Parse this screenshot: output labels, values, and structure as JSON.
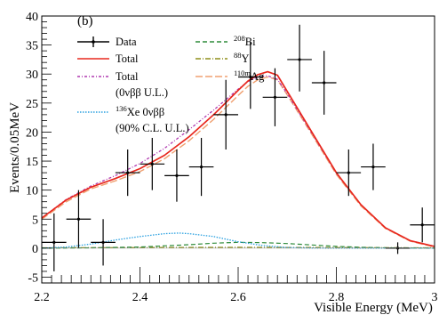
{
  "chart_data": {
    "type": "scatter",
    "panel_label": "(b)",
    "xlabel": "Visible Energy (MeV)",
    "ylabel": "Events/0.05MeV",
    "xlim": [
      2.2,
      3.0
    ],
    "ylim": [
      -6,
      40
    ],
    "x_ticks": [
      2.2,
      2.4,
      2.6,
      2.8,
      3.0
    ],
    "x_tick_labels": [
      "2.2",
      "2.4",
      "2.6",
      "2.8",
      "3"
    ],
    "y_ticks": [
      -5,
      0,
      5,
      10,
      15,
      20,
      25,
      30,
      35,
      40
    ],
    "y_tick_labels": [
      "-5",
      "0",
      "5",
      "10",
      "15",
      "20",
      "25",
      "30",
      "35",
      "40"
    ],
    "grid": false,
    "legend_placement": "top-left",
    "legend": {
      "data": "Data",
      "total": "Total",
      "total_ul_line1": "Total",
      "total_ul_line2": "(0νββ U.L.)",
      "xe_line1": "136",
      "xe_line1_rest": "Xe 0νββ",
      "xe_line2": "(90% C.L. U.L.)",
      "bi_sup": "208",
      "bi_rest": "Bi",
      "y_sup": "88",
      "y_rest": "Y",
      "ag_sup": "110m",
      "ag_rest": "Ag"
    },
    "colors": {
      "data": "#000000",
      "total": "#e8281e",
      "total_ul": "#b03ab0",
      "xe": "#2aa0e0",
      "bi": "#2e8b3a",
      "y": "#8f8f1a",
      "ag": "#f0a070"
    },
    "data_points": [
      {
        "x": 2.225,
        "y": 1,
        "ylo": -4,
        "yhi": 6
      },
      {
        "x": 2.275,
        "y": 5,
        "ylo": 0,
        "yhi": 10
      },
      {
        "x": 2.325,
        "y": 1,
        "ylo": -3,
        "yhi": 5
      },
      {
        "x": 2.375,
        "y": 13,
        "ylo": 9,
        "yhi": 17
      },
      {
        "x": 2.425,
        "y": 14.5,
        "ylo": 10,
        "yhi": 19
      },
      {
        "x": 2.475,
        "y": 12.5,
        "ylo": 8,
        "yhi": 17
      },
      {
        "x": 2.525,
        "y": 14,
        "ylo": 9,
        "yhi": 19
      },
      {
        "x": 2.575,
        "y": 23,
        "ylo": 17,
        "yhi": 29
      },
      {
        "x": 2.625,
        "y": 29.5,
        "ylo": 24,
        "yhi": 35.5
      },
      {
        "x": 2.675,
        "y": 26,
        "ylo": 21,
        "yhi": 31
      },
      {
        "x": 2.725,
        "y": 32.5,
        "ylo": 27,
        "yhi": 38.5
      },
      {
        "x": 2.775,
        "y": 28.5,
        "ylo": 23,
        "yhi": 34
      },
      {
        "x": 2.825,
        "y": 13,
        "ylo": 9,
        "yhi": 17
      },
      {
        "x": 2.875,
        "y": 14,
        "ylo": 10,
        "yhi": 18
      },
      {
        "x": 2.925,
        "y": 0,
        "ylo": -1,
        "yhi": 1
      },
      {
        "x": 2.975,
        "y": 4,
        "ylo": 1,
        "yhi": 7
      }
    ],
    "x_half_width": 0.025,
    "series": [
      {
        "key": "total",
        "x": [
          2.2,
          2.25,
          2.3,
          2.35,
          2.4,
          2.45,
          2.5,
          2.55,
          2.6,
          2.62,
          2.64,
          2.66,
          2.68,
          2.7,
          2.75,
          2.8,
          2.85,
          2.9,
          2.95,
          3.0
        ],
        "y": [
          5.2,
          8.3,
          10.5,
          12.0,
          13.7,
          16.0,
          19.2,
          23.0,
          27.2,
          28.8,
          29.9,
          30.4,
          29.8,
          27.0,
          20.0,
          13.0,
          7.5,
          3.5,
          1.3,
          0.3
        ]
      },
      {
        "key": "total_ul",
        "x": [
          2.2,
          2.25,
          2.3,
          2.35,
          2.4,
          2.45,
          2.5,
          2.55,
          2.6,
          2.62,
          2.64,
          2.66,
          2.68,
          2.7,
          2.75,
          2.8,
          2.85,
          2.9,
          2.95,
          3.0
        ],
        "y": [
          5.2,
          8.4,
          10.7,
          12.5,
          14.6,
          17.2,
          20.4,
          23.8,
          27.4,
          28.7,
          29.5,
          29.7,
          29.1,
          26.6,
          19.8,
          12.9,
          7.5,
          3.5,
          1.3,
          0.3
        ]
      },
      {
        "key": "ag",
        "x": [
          2.2,
          2.25,
          2.3,
          2.35,
          2.4,
          2.45,
          2.5,
          2.55,
          2.6,
          2.62,
          2.64,
          2.66,
          2.68,
          2.7,
          2.75,
          2.8,
          2.85,
          2.9,
          2.95,
          3.0
        ],
        "y": [
          5.0,
          8.0,
          10.2,
          11.6,
          13.2,
          15.4,
          18.5,
          22.2,
          26.3,
          27.9,
          29.0,
          29.5,
          29.0,
          26.4,
          19.6,
          12.7,
          7.3,
          3.4,
          1.2,
          0.2
        ]
      },
      {
        "key": "xe",
        "x": [
          2.2,
          2.25,
          2.3,
          2.35,
          2.4,
          2.45,
          2.48,
          2.5,
          2.55,
          2.6,
          2.65,
          2.7,
          2.75,
          2.8,
          3.0
        ],
        "y": [
          0,
          0.2,
          0.7,
          1.4,
          2.0,
          2.5,
          2.6,
          2.5,
          2.0,
          1.1,
          0.45,
          0.1,
          0.02,
          0,
          0
        ]
      },
      {
        "key": "bi",
        "x": [
          2.2,
          2.3,
          2.4,
          2.5,
          2.55,
          2.6,
          2.65,
          2.7,
          2.75,
          2.8,
          2.85,
          2.9,
          3.0
        ],
        "y": [
          0,
          0.05,
          0.2,
          0.6,
          0.85,
          1.0,
          0.95,
          0.8,
          0.55,
          0.3,
          0.15,
          0.05,
          0
        ]
      },
      {
        "key": "y",
        "x": [
          2.2,
          2.4,
          2.6,
          2.8,
          3.0
        ],
        "y": [
          0.05,
          0.1,
          0.15,
          0.1,
          0.05
        ]
      }
    ]
  }
}
